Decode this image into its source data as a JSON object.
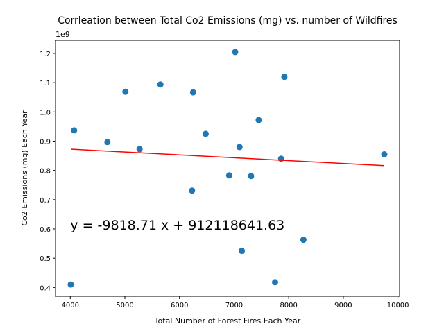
{
  "chart_data": {
    "type": "scatter",
    "title": "Corrleation between Total Co2 Emissions (mg) vs. number of Wildfires",
    "xlabel": "Total Number of Forest Fires Each Year",
    "ylabel": "Co2 Emissions (mg) Each Year",
    "y_scale_label": "1e9",
    "xlim": [
      3730,
      10030
    ],
    "ylim": [
      0.37,
      1.245
    ],
    "x_ticks": [
      4000,
      5000,
      6000,
      7000,
      8000,
      9000,
      10000
    ],
    "x_tick_labels": [
      "4000",
      "5000",
      "6000",
      "7000",
      "8000",
      "9000",
      "10000"
    ],
    "y_ticks": [
      0.4,
      0.5,
      0.6,
      0.7,
      0.8,
      0.9,
      1.0,
      1.1,
      1.2
    ],
    "y_tick_labels": [
      "0.4",
      "0.5",
      "0.6",
      "0.7",
      "0.8",
      "0.9",
      "1.0",
      "1.1",
      "1.2"
    ],
    "grid": false,
    "legend": "none",
    "point_color": "#1f77b4",
    "line_color": "#ff0000",
    "points": [
      {
        "x": 4010,
        "y": 0.41
      },
      {
        "x": 4070,
        "y": 0.937
      },
      {
        "x": 4680,
        "y": 0.897
      },
      {
        "x": 5010,
        "y": 1.069
      },
      {
        "x": 5270,
        "y": 0.873
      },
      {
        "x": 5650,
        "y": 1.094
      },
      {
        "x": 6230,
        "y": 0.731
      },
      {
        "x": 6250,
        "y": 1.067
      },
      {
        "x": 6480,
        "y": 0.925
      },
      {
        "x": 6910,
        "y": 0.783
      },
      {
        "x": 7020,
        "y": 1.205
      },
      {
        "x": 7100,
        "y": 0.88
      },
      {
        "x": 7140,
        "y": 0.525
      },
      {
        "x": 7310,
        "y": 0.781
      },
      {
        "x": 7450,
        "y": 0.972
      },
      {
        "x": 7750,
        "y": 0.418
      },
      {
        "x": 7860,
        "y": 0.84
      },
      {
        "x": 7920,
        "y": 1.12
      },
      {
        "x": 8270,
        "y": 0.563
      },
      {
        "x": 9750,
        "y": 0.855
      }
    ],
    "regression": {
      "x_range": [
        4010,
        9750
      ],
      "slope": -9818.71,
      "intercept": 912118641.63
    },
    "annotation": {
      "text": "y = -9818.71 x + 912118641.63",
      "x": 4000,
      "y": 0.6
    }
  }
}
